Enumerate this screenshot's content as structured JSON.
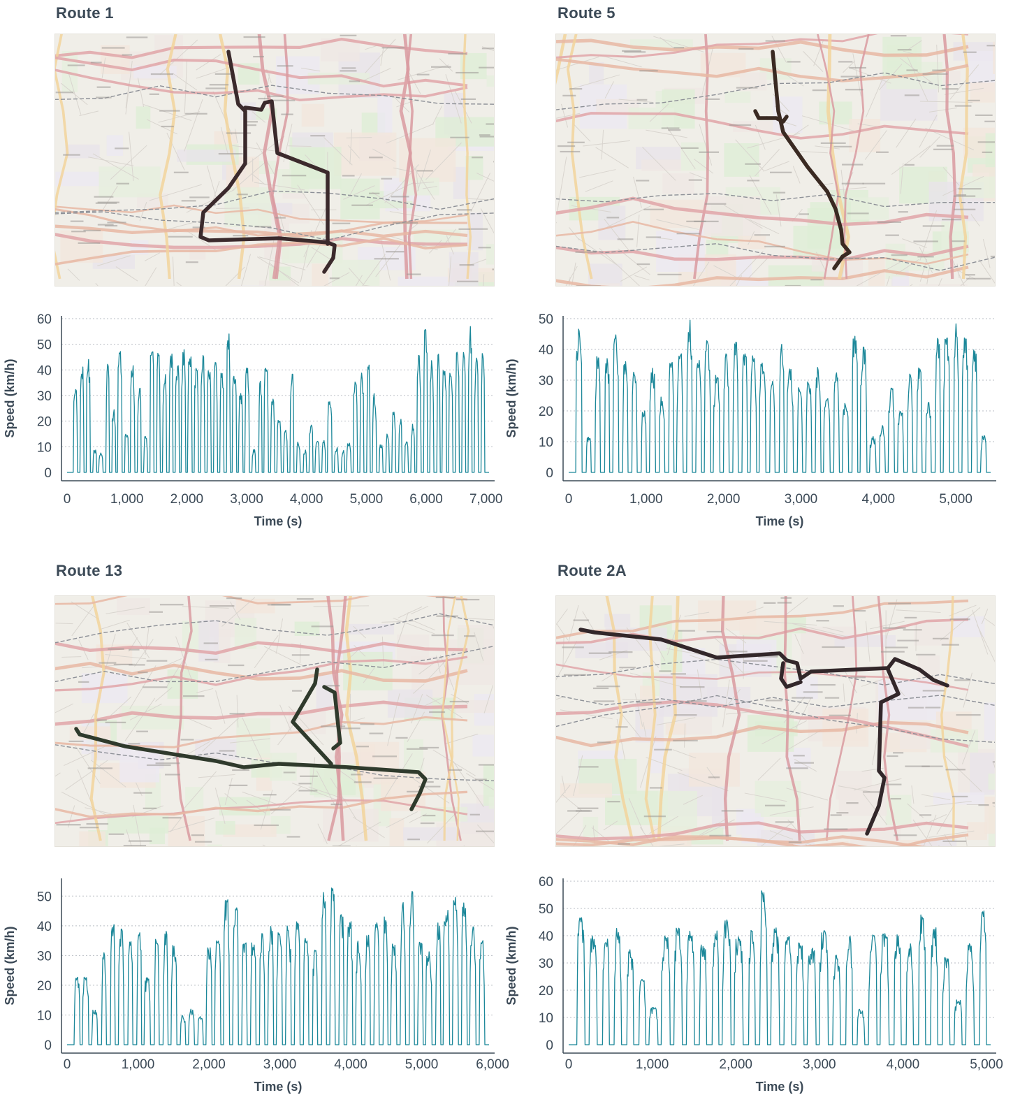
{
  "colors": {
    "line": "#1b8799",
    "axis": "#3c4a57",
    "grid": "#b9bec4",
    "route_track": "#3b2a2c",
    "route_track_alt": "#2f3a2c",
    "title": "#3c4a57"
  },
  "panels": [
    {
      "title": "Route 1",
      "map": {
        "track_color": "#3b2a2c"
      },
      "chart_data": {
        "type": "line",
        "title": "",
        "xlabel": "Time (s)",
        "ylabel": "Speed (km/h)",
        "xlim": [
          0,
          7050
        ],
        "ylim": [
          0,
          60
        ],
        "xticks": [
          0,
          1000,
          2000,
          3000,
          4000,
          5000,
          6000,
          7000
        ],
        "xtick_labels": [
          "0",
          "1,000",
          "2,000",
          "3,000",
          "4,000",
          "5,000",
          "6,000",
          "7,000"
        ],
        "yticks": [
          0,
          10,
          20,
          30,
          40,
          50,
          60
        ],
        "ytick_labels": [
          "0",
          "10",
          "20",
          "30",
          "40",
          "50",
          "60"
        ],
        "grid": "horizontal dotted",
        "duration": 7050,
        "peaks": [
          33,
          42,
          45,
          9,
          8,
          43,
          25,
          48,
          16,
          43,
          33,
          15,
          52,
          47,
          40,
          48,
          42,
          48,
          46,
          41,
          47,
          41,
          43,
          39,
          55,
          38,
          31,
          42,
          9,
          36,
          41,
          30,
          21,
          17,
          40,
          12,
          9,
          19,
          13,
          13,
          28,
          10,
          9,
          12,
          36,
          39,
          42,
          31,
          11,
          15,
          25,
          22,
          13,
          19,
          46,
          56,
          44,
          48,
          41,
          39,
          47,
          47,
          57,
          45,
          52
        ]
      }
    },
    {
      "title": "Route 5",
      "map": {
        "track_color": "#3a2a22"
      },
      "chart_data": {
        "type": "line",
        "title": "",
        "xlabel": "Time (s)",
        "ylabel": "Speed (km/h)",
        "xlim": [
          0,
          5450
        ],
        "ylim": [
          0,
          50
        ],
        "xticks": [
          0,
          1000,
          2000,
          3000,
          4000,
          5000
        ],
        "xtick_labels": [
          "0",
          "1,000",
          "2,000",
          "3,000",
          "4,000",
          "5,000"
        ],
        "yticks": [
          0,
          10,
          20,
          30,
          40,
          50
        ],
        "ytick_labels": [
          "0",
          "10",
          "20",
          "30",
          "40",
          "50"
        ],
        "grid": "horizontal dotted",
        "duration": 5450,
        "peaks": [
          47,
          12,
          39,
          38,
          45,
          37,
          33,
          21,
          34,
          25,
          36,
          39,
          50,
          37,
          43,
          32,
          39,
          43,
          40,
          38,
          36,
          30,
          42,
          34,
          28,
          30,
          35,
          24,
          33,
          23,
          46,
          41,
          12,
          16,
          28,
          20,
          33,
          35,
          23,
          44,
          45,
          50,
          44,
          40,
          12
        ]
      }
    },
    {
      "title": "Route 13",
      "map": {
        "track_color": "#2f3a2c"
      },
      "chart_data": {
        "type": "line",
        "title": "",
        "xlabel": "Time (s)",
        "ylabel": "Speed (km/h)",
        "xlim": [
          0,
          5950
        ],
        "ylim": [
          0,
          55
        ],
        "xticks": [
          0,
          1000,
          2000,
          3000,
          4000,
          5000,
          6000
        ],
        "xtick_labels": [
          "0",
          "1,000",
          "2,000",
          "3,000",
          "4,000",
          "5,000",
          "6,000"
        ],
        "yticks": [
          0,
          10,
          20,
          30,
          40,
          50
        ],
        "ytick_labels": [
          "0",
          "10",
          "20",
          "30",
          "40",
          "50"
        ],
        "grid": "horizontal dotted",
        "duration": 5950,
        "peaks": [
          23,
          24,
          12,
          31,
          41,
          39,
          35,
          38,
          23,
          36,
          39,
          35,
          10,
          12,
          10,
          33,
          36,
          49,
          47,
          35,
          37,
          38,
          40,
          38,
          40,
          42,
          37,
          32,
          52,
          53,
          44,
          42,
          35,
          38,
          41,
          43,
          34,
          48,
          52,
          35,
          32,
          41,
          46,
          51,
          48,
          40,
          35
        ]
      }
    },
    {
      "title": "Route 2A",
      "map": {
        "track_color": "#32272a"
      },
      "chart_data": {
        "type": "line",
        "title": "",
        "xlabel": "Time (s)",
        "ylabel": "Speed (km/h)",
        "xlim": [
          0,
          5050
        ],
        "ylim": [
          0,
          60
        ],
        "xticks": [
          0,
          1000,
          2000,
          3000,
          4000,
          5000
        ],
        "xtick_labels": [
          "0",
          "1,000",
          "2,000",
          "3,000",
          "4,000",
          "5,000"
        ],
        "yticks": [
          0,
          10,
          20,
          30,
          40,
          50,
          60
        ],
        "ytick_labels": [
          "0",
          "10",
          "20",
          "30",
          "40",
          "50",
          "60"
        ],
        "grid": "horizontal dotted",
        "duration": 5050,
        "peaks": [
          47,
          40,
          39,
          43,
          35,
          25,
          14,
          40,
          43,
          42,
          38,
          43,
          46,
          40,
          42,
          57,
          43,
          40,
          38,
          36,
          42,
          33,
          40,
          13,
          41,
          41,
          41,
          37,
          48,
          43,
          32,
          17,
          38,
          50
        ]
      }
    }
  ]
}
